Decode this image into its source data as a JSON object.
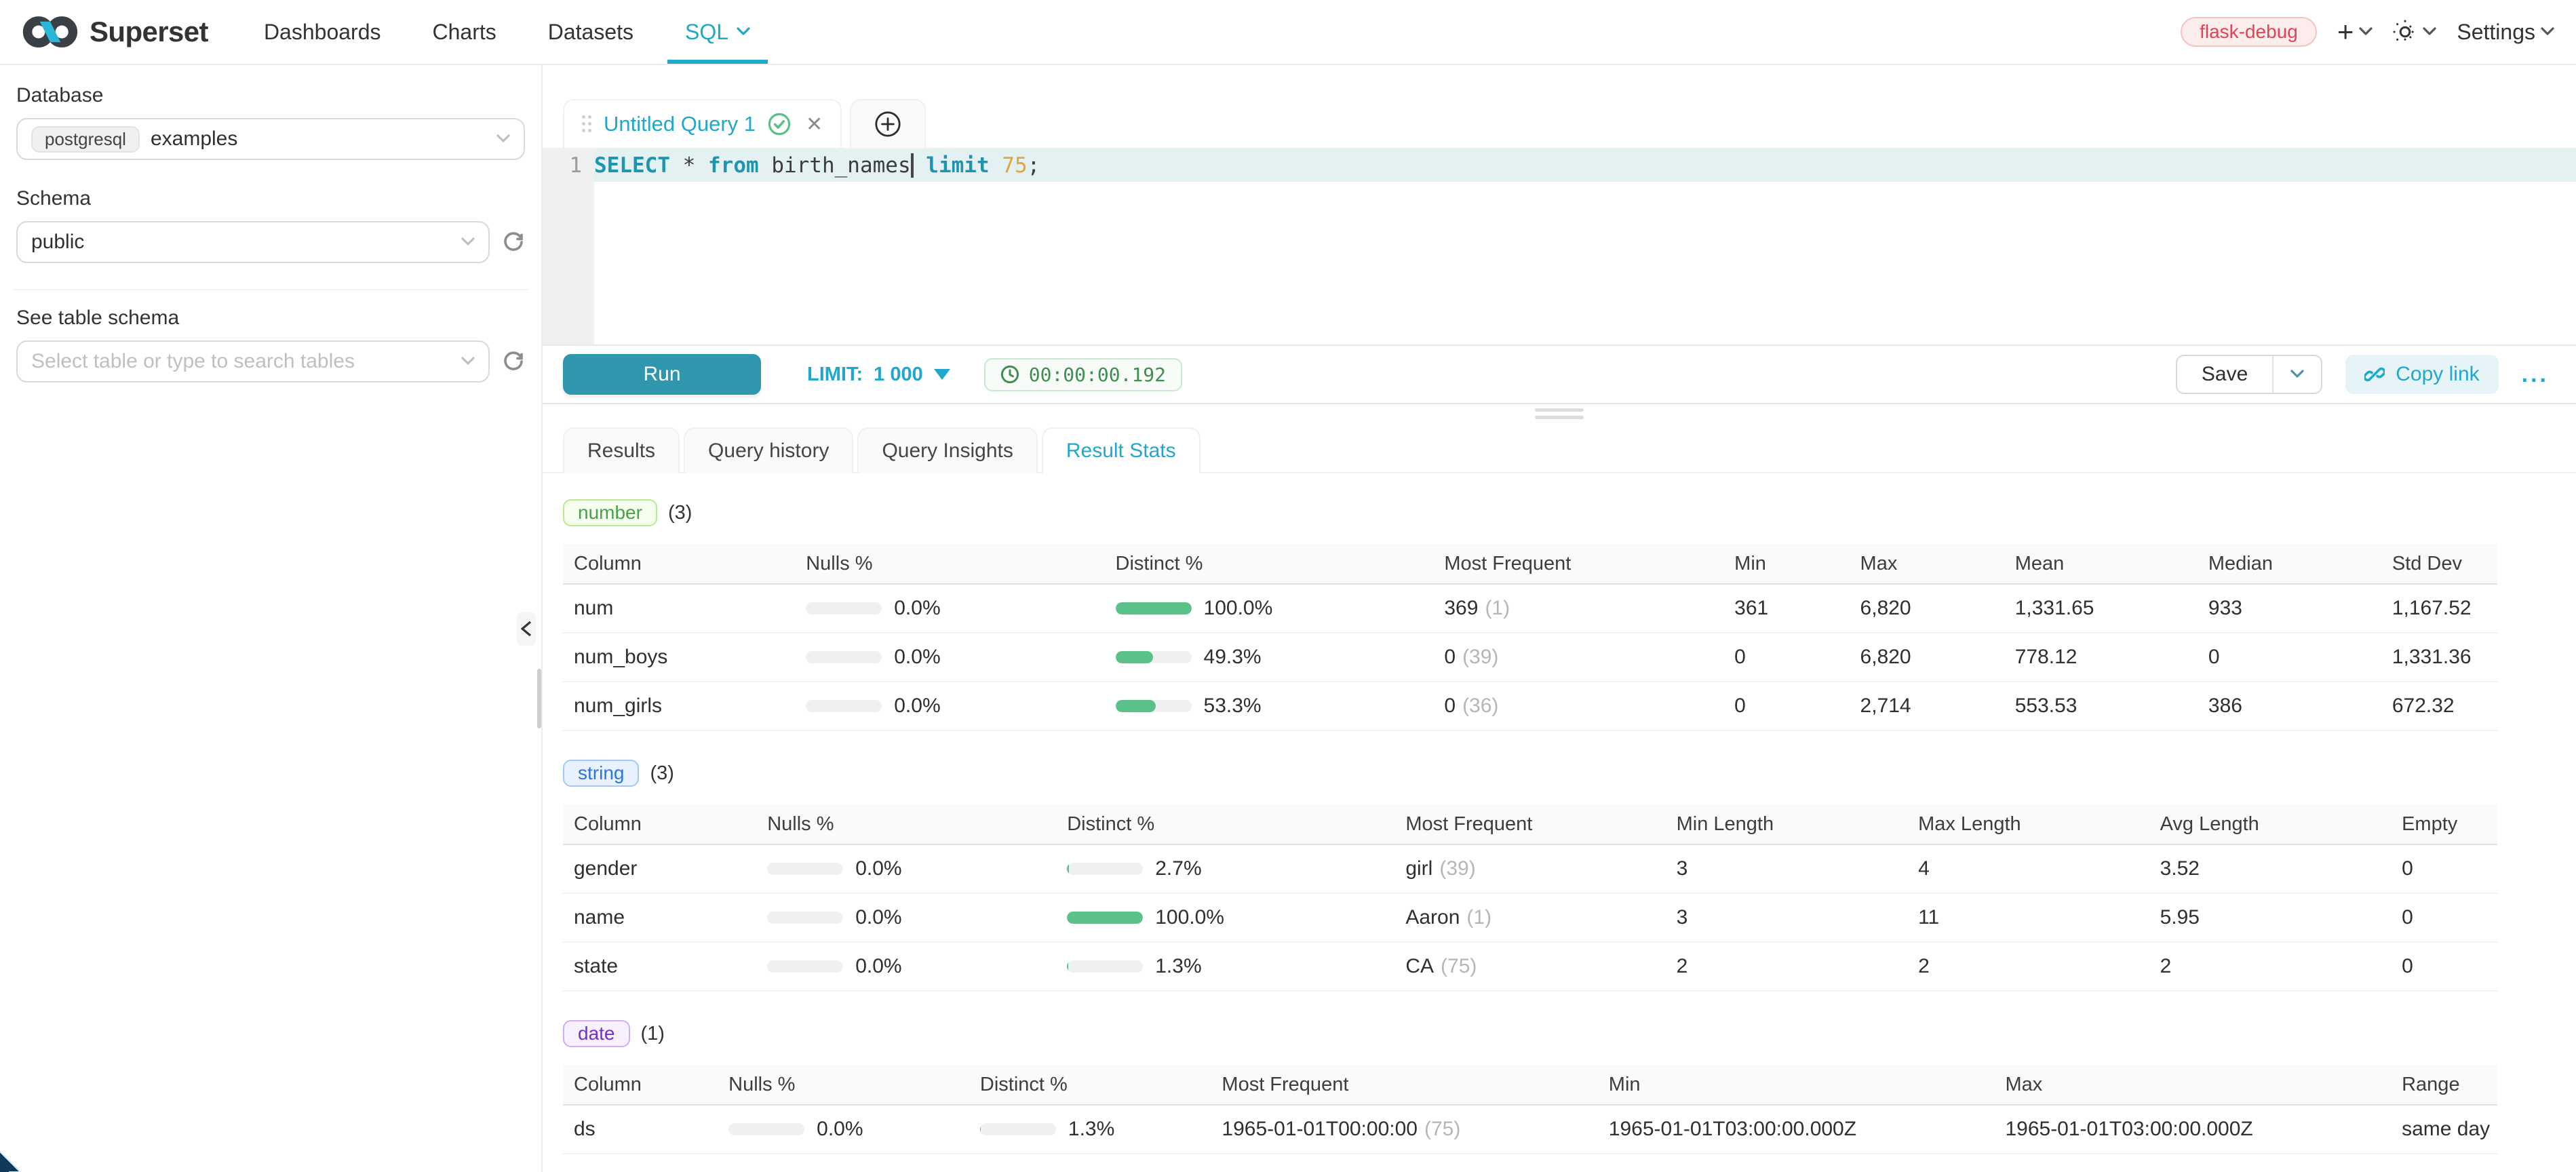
{
  "nav": {
    "brand": "Superset",
    "items": [
      {
        "label": "Dashboards",
        "active": false,
        "has_chevron": false
      },
      {
        "label": "Charts",
        "active": false,
        "has_chevron": false
      },
      {
        "label": "Datasets",
        "active": false,
        "has_chevron": false
      },
      {
        "label": "SQL",
        "active": true,
        "has_chevron": true
      }
    ],
    "environment_badge": "flask-debug",
    "settings_label": "Settings"
  },
  "sidebar": {
    "database_label": "Database",
    "database_type_tag": "postgresql",
    "database_value": "examples",
    "schema_label": "Schema",
    "schema_value": "public",
    "table_label": "See table schema",
    "table_placeholder": "Select table or type to search tables"
  },
  "editor": {
    "tab_title": "Untitled Query 1",
    "gutter_line": "1",
    "sql_tokens": [
      {
        "text": "SELECT",
        "type": "kw"
      },
      {
        "text": " ",
        "type": "id"
      },
      {
        "text": "*",
        "type": "id"
      },
      {
        "text": " ",
        "type": "id"
      },
      {
        "text": "from",
        "type": "kw"
      },
      {
        "text": " birth_names",
        "type": "id"
      },
      {
        "text": "",
        "type": "cursor"
      },
      {
        "text": " ",
        "type": "id"
      },
      {
        "text": "limit",
        "type": "kw"
      },
      {
        "text": " ",
        "type": "id"
      },
      {
        "text": "75",
        "type": "num"
      },
      {
        "text": ";",
        "type": "id"
      }
    ],
    "toolbar": {
      "run_label": "Run",
      "limit_label": "LIMIT:",
      "limit_value": "1 000",
      "timer": "00:00:00.192",
      "save_label": "Save",
      "copy_link_label": "Copy link",
      "more_label": "..."
    }
  },
  "result_tabs": [
    {
      "label": "Results",
      "active": false
    },
    {
      "label": "Query history",
      "active": false
    },
    {
      "label": "Query Insights",
      "active": false
    },
    {
      "label": "Result Stats",
      "active": true
    }
  ],
  "colors": {
    "primary": "#1fa8c9",
    "run_button": "#2e96ad",
    "bar_fill": "#5ac189",
    "badge_red": "#e04355"
  },
  "stats_sections": [
    {
      "tag": "number",
      "count": "(3)",
      "tag_colors": {
        "text": "#45a248",
        "bg": "#f6ffee",
        "border": "#b7eb8f"
      },
      "headers": [
        "Column",
        "Nulls %",
        "Distinct %",
        "Most Frequent",
        "Min",
        "Max",
        "Mean",
        "Median",
        "Std Dev"
      ],
      "rows": [
        {
          "column": "num",
          "nulls_label": "0.0%",
          "nulls_pct": 0,
          "distinct_label": "100.0%",
          "distinct_pct": 100,
          "most_frequent": "369",
          "most_frequent_count": "(1)",
          "values": [
            "361",
            "6,820",
            "1,331.65",
            "933",
            "1,167.52"
          ]
        },
        {
          "column": "num_boys",
          "nulls_label": "0.0%",
          "nulls_pct": 0,
          "distinct_label": "49.3%",
          "distinct_pct": 49.3,
          "most_frequent": "0",
          "most_frequent_count": "(39)",
          "values": [
            "0",
            "6,820",
            "778.12",
            "0",
            "1,331.36"
          ]
        },
        {
          "column": "num_girls",
          "nulls_label": "0.0%",
          "nulls_pct": 0,
          "distinct_label": "53.3%",
          "distinct_pct": 53.3,
          "most_frequent": "0",
          "most_frequent_count": "(36)",
          "values": [
            "0",
            "2,714",
            "553.53",
            "386",
            "672.32"
          ]
        }
      ]
    },
    {
      "tag": "string",
      "count": "(3)",
      "tag_colors": {
        "text": "#2d74e0",
        "bg": "#e8f2ff",
        "border": "#a3c7f7"
      },
      "headers": [
        "Column",
        "Nulls %",
        "Distinct %",
        "Most Frequent",
        "Min Length",
        "Max Length",
        "Avg Length",
        "Empty"
      ],
      "rows": [
        {
          "column": "gender",
          "nulls_label": "0.0%",
          "nulls_pct": 0,
          "distinct_label": "2.7%",
          "distinct_pct": 2.7,
          "most_frequent": "girl",
          "most_frequent_count": "(39)",
          "values": [
            "3",
            "4",
            "3.52",
            "0"
          ]
        },
        {
          "column": "name",
          "nulls_label": "0.0%",
          "nulls_pct": 0,
          "distinct_label": "100.0%",
          "distinct_pct": 100,
          "most_frequent": "Aaron",
          "most_frequent_count": "(1)",
          "values": [
            "3",
            "11",
            "5.95",
            "0"
          ]
        },
        {
          "column": "state",
          "nulls_label": "0.0%",
          "nulls_pct": 0,
          "distinct_label": "1.3%",
          "distinct_pct": 1.3,
          "most_frequent": "CA",
          "most_frequent_count": "(75)",
          "values": [
            "2",
            "2",
            "2",
            "0"
          ]
        }
      ]
    },
    {
      "tag": "date",
      "count": "(1)",
      "tag_colors": {
        "text": "#722ed1",
        "bg": "#f9f0ff",
        "border": "#d3adf7"
      },
      "headers": [
        "Column",
        "Nulls %",
        "Distinct %",
        "Most Frequent",
        "Min",
        "Max",
        "Range"
      ],
      "rows": [
        {
          "column": "ds",
          "nulls_label": "0.0%",
          "nulls_pct": 0,
          "distinct_label": "1.3%",
          "distinct_pct": 1.3,
          "most_frequent": "1965-01-01T00:00:00",
          "most_frequent_count": "(75)",
          "values": [
            "1965-01-01T03:00:00.000Z",
            "1965-01-01T03:00:00.000Z",
            "same day"
          ]
        }
      ]
    }
  ]
}
